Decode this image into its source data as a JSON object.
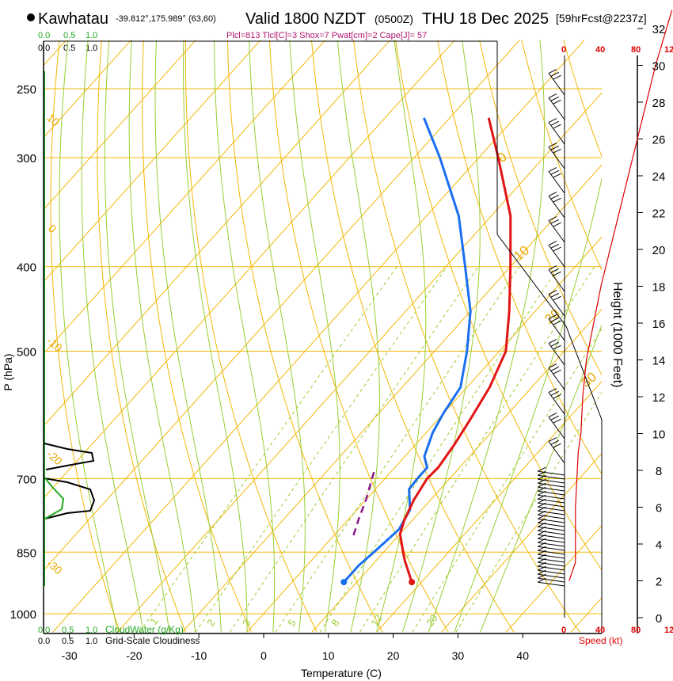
{
  "header": {
    "station": "Kawhatau",
    "coords": "-39.812°,175.989° (63,60)",
    "valid": "Valid 1800 NZDT",
    "zulu": "(0500Z)",
    "date": "THU 18 Dec 2025",
    "forecast": "[59hrFcst@2237z]",
    "indices": "Plcl=813 Tlcl[C]=3 Shox=7 Pwat[cm]=2 Cape[J]= 57"
  },
  "colors": {
    "temperature": "#e11414",
    "dewpoint": "#1a6ef0",
    "parcel": "#8b1a8b",
    "isotherm": "#f2b705",
    "dry_adiabat": "#f2b705",
    "moist_adiabat": "#9acd32",
    "mixing_ratio": "#9acd32",
    "cloud_water": "#22aa22",
    "speed": "#dd0000",
    "black": "#000000"
  },
  "chart_data": {
    "type": "skew-t log-p sounding",
    "title": "Kawhatau Valid 1800 NZDT THU 18 Dec 2025",
    "xlabel": "Temperature (C)",
    "ylabel": "P (hPa)",
    "right_axis_label": "Height (1000 Feet)",
    "speed_label": "Speed (kt)",
    "x_ticks": [
      -30,
      -20,
      -10,
      0,
      10,
      20,
      30,
      40
    ],
    "pressure_ticks": [
      250,
      300,
      400,
      500,
      700,
      850,
      1000
    ],
    "height_ticks": [
      0,
      2,
      4,
      6,
      8,
      10,
      12,
      14,
      16,
      18,
      20,
      22,
      24,
      26,
      28,
      30,
      32
    ],
    "speed_ticks_top": [
      "0",
      "40",
      "80",
      "12"
    ],
    "speed_ticks_bottom": [
      "0",
      "40",
      "80",
      "12"
    ],
    "cloud_top_labels": {
      "green": [
        "0.0",
        "0.5",
        "1.0"
      ],
      "black": [
        "0.0",
        "0.5",
        "1.0"
      ]
    },
    "cloud_bottom_labels": {
      "green": [
        "0.0",
        "0.5",
        "1.0"
      ],
      "black": [
        "0.0",
        "0.5",
        "1.0"
      ]
    },
    "cloud_water_label": "CloudWater (g/Kg)",
    "cloudiness_label": "Grid-Scale Cloudiness",
    "isotherm_labels": [
      "10",
      "0",
      "-10",
      "-20",
      "-30",
      "0",
      "10",
      "20",
      "30"
    ],
    "mixing_ratio_labels": [
      "1",
      "2",
      "3",
      "5",
      "8",
      "12",
      "20"
    ],
    "temperature_profile": [
      {
        "p": 920,
        "t": 18.5
      },
      {
        "p": 870,
        "t": 14.5
      },
      {
        "p": 850,
        "t": 13.0
      },
      {
        "p": 810,
        "t": 10.0
      },
      {
        "p": 780,
        "t": 8.7
      },
      {
        "p": 740,
        "t": 7.4
      },
      {
        "p": 700,
        "t": 6.5
      },
      {
        "p": 680,
        "t": 6.7
      },
      {
        "p": 640,
        "t": 6.0
      },
      {
        "p": 600,
        "t": 5.0
      },
      {
        "p": 550,
        "t": 3.5
      },
      {
        "p": 500,
        "t": 1.0
      },
      {
        "p": 450,
        "t": -4.0
      },
      {
        "p": 400,
        "t": -10.0
      },
      {
        "p": 350,
        "t": -17.0
      },
      {
        "p": 300,
        "t": -27.0
      },
      {
        "p": 270,
        "t": -34.0
      }
    ],
    "dewpoint_profile": [
      {
        "p": 920,
        "t": 8.0
      },
      {
        "p": 880,
        "t": 8.0
      },
      {
        "p": 850,
        "t": 8.5
      },
      {
        "p": 800,
        "t": 9.2
      },
      {
        "p": 760,
        "t": 8.2
      },
      {
        "p": 720,
        "t": 5.2
      },
      {
        "p": 700,
        "t": 5.0
      },
      {
        "p": 680,
        "t": 5.0
      },
      {
        "p": 660,
        "t": 3.0
      },
      {
        "p": 620,
        "t": 1.0
      },
      {
        "p": 590,
        "t": 0.0
      },
      {
        "p": 550,
        "t": -1.0
      },
      {
        "p": 500,
        "t": -5.0
      },
      {
        "p": 450,
        "t": -10.0
      },
      {
        "p": 400,
        "t": -17.0
      },
      {
        "p": 350,
        "t": -25.0
      },
      {
        "p": 300,
        "t": -36.0
      },
      {
        "p": 270,
        "t": -44.0
      }
    ],
    "parcel_profile": [
      {
        "p": 813,
        "t": 3.0
      },
      {
        "p": 780,
        "t": 1.6
      },
      {
        "p": 740,
        "t": 0.0
      },
      {
        "p": 700,
        "t": -2.0
      },
      {
        "p": 680,
        "t": -3.0
      }
    ],
    "surface": {
      "p": 920,
      "t": 18.5,
      "td": 8.0
    },
    "wind_speed_profile": [
      {
        "h": 2.0,
        "kt": 5
      },
      {
        "h": 3.0,
        "kt": 12
      },
      {
        "h": 6.0,
        "kt": 12
      },
      {
        "h": 9.0,
        "kt": 15
      },
      {
        "h": 10.0,
        "kt": 18
      },
      {
        "h": 12.0,
        "kt": 20
      },
      {
        "h": 14.0,
        "kt": 24
      },
      {
        "h": 18.0,
        "kt": 40
      },
      {
        "h": 22.0,
        "kt": 60
      },
      {
        "h": 26.0,
        "kt": 80
      },
      {
        "h": 30.0,
        "kt": 100
      },
      {
        "h": 33.0,
        "kt": 118
      }
    ]
  }
}
